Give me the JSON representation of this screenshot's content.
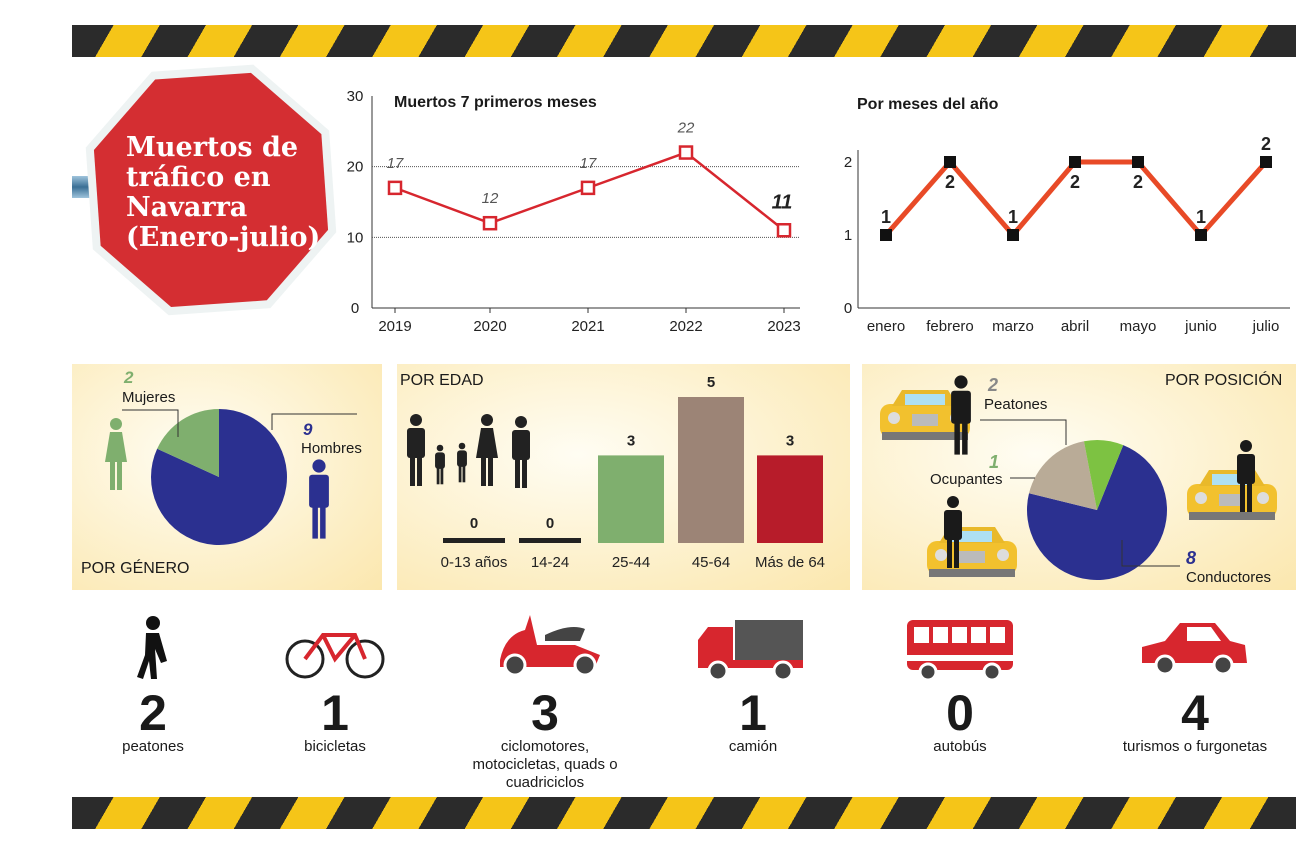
{
  "sign": {
    "line1": "Muertos de",
    "line2": "tráfico en",
    "line3": "Navarra",
    "line4": "(Enero-julio)"
  },
  "colors": {
    "red": "#d7262e",
    "line2": "#e84a27",
    "blue": "#2b3090",
    "green": "#7faf6e",
    "tan": "#b9ab97",
    "lime": "#7dc242",
    "brown": "#9c8476",
    "darkred": "#b71c2a"
  },
  "chart_data": [
    {
      "type": "line",
      "title": "Muertos 7 primeros meses",
      "categories": [
        "2019",
        "2020",
        "2021",
        "2022",
        "2023"
      ],
      "values": [
        17,
        12,
        17,
        22,
        11
      ],
      "labels": [
        "17",
        "12",
        "17",
        "22",
        "11"
      ],
      "yticks": [
        "0",
        "10",
        "20",
        "30"
      ],
      "ylim": [
        0,
        30
      ]
    },
    {
      "type": "line",
      "title": "Por meses del año",
      "categories": [
        "enero",
        "febrero",
        "marzo",
        "abril",
        "mayo",
        "junio",
        "julio"
      ],
      "values": [
        1,
        2,
        1,
        2,
        2,
        1,
        2
      ],
      "labels": [
        "1",
        "2",
        "1",
        "2",
        "2",
        "1",
        "2"
      ],
      "yticks": [
        "0",
        "1",
        "2"
      ],
      "ylim": [
        0,
        2
      ]
    },
    {
      "type": "pie",
      "title": "POR GÉNERO",
      "labels": [
        "Mujeres",
        "Hombres"
      ],
      "values": [
        2,
        9
      ],
      "value_labels": [
        "2",
        "9"
      ]
    },
    {
      "type": "bar",
      "title": "POR EDAD",
      "categories": [
        "0-13 años",
        "14-24",
        "25-44",
        "45-64",
        "Más de 64"
      ],
      "values": [
        0,
        0,
        3,
        5,
        3
      ],
      "value_labels": [
        "0",
        "0",
        "3",
        "5",
        "3"
      ]
    },
    {
      "type": "pie",
      "title": "POR POSICIÓN",
      "labels": [
        "Peatones",
        "Ocupantes",
        "Conductores"
      ],
      "values": [
        2,
        1,
        8
      ],
      "value_labels": [
        "2",
        "1",
        "8"
      ]
    }
  ],
  "vehicles": [
    {
      "icon": "pedestrian-icon",
      "value": "2",
      "label": "peatones"
    },
    {
      "icon": "bicycle-icon",
      "value": "1",
      "label": "bicicletas"
    },
    {
      "icon": "scooter-icon",
      "value": "3",
      "label": "ciclomotores, motocicletas, quads o cuadriciclos"
    },
    {
      "icon": "truck-icon",
      "value": "1",
      "label": "camión"
    },
    {
      "icon": "bus-icon",
      "value": "0",
      "label": "autobús"
    },
    {
      "icon": "car-icon",
      "value": "4",
      "label": "turismos o furgonetas"
    }
  ]
}
